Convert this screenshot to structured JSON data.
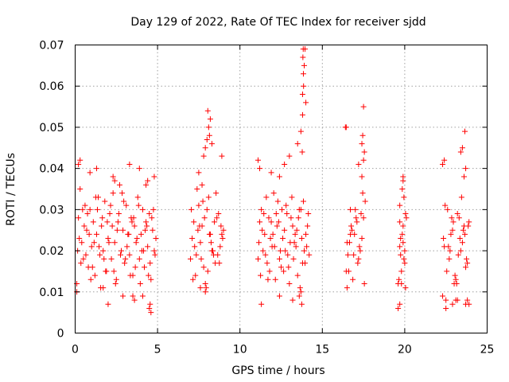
{
  "chart_data": {
    "type": "scatter",
    "title": "Day 129 of 2022, Rate Of TEC Index for receiver sjdd",
    "xlabel": "GPS time / hours",
    "ylabel": "ROTI / TECUs",
    "xlim": [
      0,
      25
    ],
    "ylim": [
      0,
      0.07
    ],
    "xticks": [
      0,
      5,
      10,
      15,
      20,
      25
    ],
    "xtick_labels": [
      "0",
      "5",
      "10",
      "15",
      "20",
      "25"
    ],
    "yticks": [
      0,
      0.01,
      0.02,
      0.03,
      0.04,
      0.05,
      0.06,
      0.07
    ],
    "ytick_labels": [
      "0",
      "0.01",
      "0.02",
      "0.03",
      "0.04",
      "0.05",
      "0.06",
      "0.07"
    ],
    "grid": true,
    "marker": "+",
    "color": "#ff0000",
    "series": [
      {
        "name": "ROTI",
        "x": [
          0.1,
          0.2,
          0.3,
          0.4,
          0.5,
          0.6,
          0.7,
          0.8,
          0.9,
          1.0,
          1.1,
          1.2,
          1.3,
          1.4,
          1.5,
          1.6,
          1.7,
          1.8,
          1.9,
          2.0,
          2.1,
          2.2,
          2.3,
          2.4,
          2.5,
          2.6,
          2.7,
          2.8,
          2.9,
          3.0,
          3.1,
          3.2,
          3.3,
          3.4,
          3.5,
          3.6,
          3.7,
          3.8,
          3.9,
          4.0,
          4.1,
          4.2,
          4.3,
          4.4,
          4.5,
          4.6,
          4.7,
          4.8,
          4.9,
          0.15,
          0.35,
          0.55,
          0.75,
          0.95,
          1.15,
          1.35,
          1.55,
          1.75,
          1.95,
          2.15,
          2.35,
          2.55,
          2.75,
          2.95,
          3.15,
          3.35,
          3.55,
          3.75,
          3.95,
          4.15,
          4.35,
          4.55,
          4.75,
          0.25,
          0.45,
          0.65,
          0.85,
          1.05,
          1.25,
          1.45,
          1.65,
          1.85,
          2.05,
          2.25,
          2.45,
          2.65,
          2.85,
          3.05,
          3.25,
          3.45,
          3.65,
          3.85,
          4.05,
          4.25,
          4.45,
          4.65,
          4.85,
          0.2,
          0.3,
          0.9,
          1.3,
          2.3,
          2.4,
          3.3,
          3.9,
          4.3,
          4.4,
          4.8,
          1.7,
          3.5,
          4.5,
          4.55,
          4.6,
          0.1,
          2.0,
          2.9,
          3.6,
          4.1,
          7.0,
          7.2,
          7.4,
          7.6,
          7.8,
          8.0,
          8.2,
          8.4,
          8.6,
          8.8,
          9.0,
          7.1,
          7.3,
          7.5,
          7.7,
          7.9,
          8.1,
          8.3,
          8.5,
          8.7,
          8.9,
          7.05,
          7.25,
          7.45,
          7.65,
          7.85,
          8.05,
          8.25,
          8.45,
          8.65,
          8.85,
          7.15,
          7.35,
          7.55,
          7.75,
          7.95,
          8.15,
          8.35,
          8.55,
          8.75,
          8.95,
          7.5,
          7.7,
          7.8,
          7.9,
          8.0,
          8.1,
          8.2,
          8.3,
          7.6,
          8.9,
          7.9,
          8.05,
          8.15,
          11.1,
          11.3,
          11.5,
          11.7,
          11.9,
          12.1,
          12.3,
          12.5,
          12.7,
          12.9,
          13.1,
          13.3,
          13.5,
          13.7,
          13.9,
          14.1,
          11.2,
          11.4,
          11.6,
          11.8,
          12.0,
          12.2,
          12.4,
          12.6,
          12.8,
          13.0,
          13.2,
          13.4,
          13.6,
          13.8,
          14.0,
          14.2,
          11.15,
          11.35,
          11.55,
          11.75,
          11.95,
          12.15,
          12.35,
          12.55,
          12.75,
          12.95,
          13.15,
          13.35,
          13.55,
          13.75,
          13.95,
          14.15,
          11.25,
          11.45,
          11.65,
          11.85,
          12.05,
          12.25,
          12.45,
          12.65,
          12.85,
          13.05,
          13.25,
          13.45,
          13.65,
          13.85,
          14.05,
          11.1,
          11.2,
          11.9,
          12.4,
          12.7,
          13.0,
          13.5,
          13.7,
          13.8,
          13.85,
          13.9,
          13.95,
          14.0,
          11.3,
          12.4,
          13.2,
          13.6,
          13.7,
          13.75,
          13.78,
          13.8,
          13.82,
          13.84,
          13.86,
          16.4,
          16.6,
          16.8,
          17.0,
          17.2,
          17.4,
          17.6,
          16.5,
          16.7,
          16.9,
          17.1,
          17.3,
          17.5,
          16.45,
          16.65,
          16.85,
          17.05,
          17.25,
          17.45,
          16.55,
          16.75,
          16.95,
          17.15,
          17.35,
          17.55,
          16.5,
          16.7,
          17.2,
          17.4,
          17.5,
          17.55,
          17.4,
          17.45,
          16.45,
          17.5,
          19.6,
          19.7,
          19.8,
          19.9,
          20.0,
          20.1,
          19.65,
          19.75,
          19.85,
          19.95,
          20.05,
          19.6,
          19.7,
          19.8,
          19.9,
          20.0,
          19.7,
          19.75,
          19.85,
          19.9,
          19.95,
          19.7,
          19.9,
          20.05,
          22.3,
          22.5,
          22.7,
          22.9,
          23.1,
          23.3,
          23.5,
          23.7,
          23.9,
          22.4,
          22.6,
          22.8,
          23.0,
          23.2,
          23.4,
          23.6,
          23.8,
          22.35,
          22.55,
          22.75,
          22.95,
          23.15,
          23.35,
          23.55,
          23.75,
          22.45,
          22.65,
          22.85,
          23.05,
          23.25,
          23.45,
          23.65,
          23.85,
          22.3,
          22.4,
          23.6,
          23.7,
          23.4,
          23.5,
          23.65,
          23.7,
          23.8,
          22.9,
          23.1,
          23.9,
          23.2,
          22.5
        ],
        "y": [
          0.012,
          0.028,
          0.035,
          0.022,
          0.018,
          0.031,
          0.025,
          0.016,
          0.03,
          0.021,
          0.027,
          0.014,
          0.024,
          0.033,
          0.019,
          0.026,
          0.02,
          0.032,
          0.015,
          0.023,
          0.029,
          0.018,
          0.034,
          0.022,
          0.013,
          0.027,
          0.036,
          0.02,
          0.025,
          0.017,
          0.031,
          0.024,
          0.019,
          0.028,
          0.014,
          0.026,
          0.022,
          0.033,
          0.018,
          0.024,
          0.03,
          0.016,
          0.027,
          0.021,
          0.029,
          0.013,
          0.025,
          0.02,
          0.023,
          0.02,
          0.017,
          0.026,
          0.029,
          0.013,
          0.022,
          0.03,
          0.011,
          0.018,
          0.027,
          0.031,
          0.015,
          0.025,
          0.019,
          0.032,
          0.021,
          0.014,
          0.028,
          0.023,
          0.012,
          0.02,
          0.026,
          0.017,
          0.03,
          0.023,
          0.03,
          0.019,
          0.024,
          0.016,
          0.033,
          0.021,
          0.028,
          0.015,
          0.022,
          0.026,
          0.012,
          0.029,
          0.034,
          0.018,
          0.024,
          0.027,
          0.016,
          0.031,
          0.02,
          0.025,
          0.014,
          0.028,
          0.019,
          0.041,
          0.042,
          0.039,
          0.04,
          0.038,
          0.037,
          0.041,
          0.04,
          0.036,
          0.037,
          0.038,
          0.011,
          0.009,
          0.006,
          0.007,
          0.005,
          0.01,
          0.007,
          0.009,
          0.008,
          0.009,
          0.018,
          0.027,
          0.035,
          0.022,
          0.016,
          0.03,
          0.024,
          0.019,
          0.028,
          0.021,
          0.025,
          0.023,
          0.014,
          0.031,
          0.026,
          0.012,
          0.033,
          0.02,
          0.017,
          0.029,
          0.024,
          0.03,
          0.021,
          0.025,
          0.018,
          0.028,
          0.015,
          0.022,
          0.027,
          0.019,
          0.026,
          0.013,
          0.019,
          0.026,
          0.032,
          0.011,
          0.024,
          0.02,
          0.034,
          0.017,
          0.023,
          0.039,
          0.036,
          0.043,
          0.045,
          0.047,
          0.05,
          0.052,
          0.046,
          0.011,
          0.043,
          0.01,
          0.054,
          0.048,
          0.018,
          0.03,
          0.024,
          0.013,
          0.027,
          0.021,
          0.032,
          0.016,
          0.025,
          0.019,
          0.028,
          0.022,
          0.014,
          0.03,
          0.02,
          0.026,
          0.027,
          0.02,
          0.033,
          0.015,
          0.024,
          0.029,
          0.018,
          0.023,
          0.031,
          0.012,
          0.026,
          0.021,
          0.03,
          0.017,
          0.024,
          0.019,
          0.022,
          0.025,
          0.019,
          0.028,
          0.021,
          0.013,
          0.027,
          0.03,
          0.02,
          0.016,
          0.033,
          0.024,
          0.028,
          0.023,
          0.017,
          0.029,
          0.014,
          0.029,
          0.017,
          0.023,
          0.034,
          0.026,
          0.02,
          0.015,
          0.029,
          0.022,
          0.018,
          0.025,
          0.011,
          0.032,
          0.021,
          0.042,
          0.04,
          0.039,
          0.038,
          0.041,
          0.043,
          0.046,
          0.049,
          0.058,
          0.063,
          0.065,
          0.069,
          0.056,
          0.007,
          0.009,
          0.008,
          0.009,
          0.01,
          0.007,
          0.044,
          0.053,
          0.067,
          0.069,
          0.06,
          0.05,
          0.015,
          0.025,
          0.03,
          0.018,
          0.023,
          0.032,
          0.011,
          0.024,
          0.019,
          0.027,
          0.02,
          0.028,
          0.015,
          0.022,
          0.013,
          0.028,
          0.021,
          0.034,
          0.019,
          0.026,
          0.024,
          0.017,
          0.029,
          0.012,
          0.022,
          0.03,
          0.041,
          0.038,
          0.042,
          0.044,
          0.046,
          0.048,
          0.05,
          0.055,
          0.006,
          0.007,
          0.015,
          0.026,
          0.02,
          0.028,
          0.013,
          0.023,
          0.024,
          0.018,
          0.029,
          0.012,
          0.021,
          0.012,
          0.022,
          0.017,
          0.027,
          0.019,
          0.035,
          0.037,
          0.033,
          0.031,
          0.038,
          0.011,
          0.009,
          0.008,
          0.018,
          0.025,
          0.013,
          0.028,
          0.022,
          0.016,
          0.027,
          0.021,
          0.03,
          0.024,
          0.012,
          0.029,
          0.02,
          0.026,
          0.017,
          0.023,
          0.015,
          0.02,
          0.027,
          0.012,
          0.023,
          0.025,
          0.018,
          0.031,
          0.021,
          0.028,
          0.014,
          0.019,
          0.033,
          0.024,
          0.026,
          0.041,
          0.042,
          0.038,
          0.04,
          0.044,
          0.045,
          0.049,
          0.007,
          0.008,
          0.007,
          0.008,
          0.007,
          0.008,
          0.006
        ]
      }
    ]
  }
}
